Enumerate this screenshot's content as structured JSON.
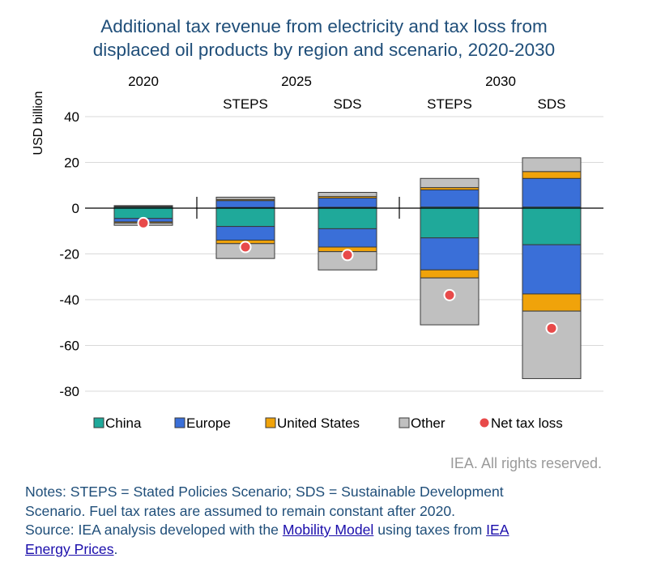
{
  "chart_data": {
    "type": "bar",
    "stacked": true,
    "title": "Additional tax revenue from electricity and tax loss from displaced oil products by region and scenario, 2020-2030",
    "title_lines": [
      "Additional tax revenue from electricity and tax loss from",
      "displaced oil products by region and scenario, 2020-2030"
    ],
    "ylabel": "USD billion",
    "ylim": [
      -80,
      40
    ],
    "yticks": [
      40,
      20,
      0,
      -20,
      -40,
      -60,
      -80
    ],
    "grid": true,
    "legend_position": "bottom",
    "year_labels": [
      "2020",
      "2025",
      "2030"
    ],
    "categories": [
      "2020",
      "STEPS",
      "SDS",
      "STEPS",
      "SDS"
    ],
    "colors": {
      "China": "#1fa99a",
      "Europe": "#3a6fd8",
      "United States": "#f0a30a",
      "Other": "#c0c0c0",
      "Net tax loss": "#e84a4a",
      "outline": "#3a3a3a"
    },
    "series": [
      {
        "name": "China",
        "positive": [
          0.5,
          0.3,
          0.4,
          0.5,
          0.5
        ],
        "negative": [
          -4.5,
          -8,
          -9,
          -13,
          -16
        ]
      },
      {
        "name": "Europe",
        "positive": [
          0.2,
          3,
          4,
          7.5,
          12.5
        ],
        "negative": [
          -1.5,
          -6,
          -8,
          -14,
          -21.5
        ]
      },
      {
        "name": "United States",
        "positive": [
          0.1,
          0.5,
          0.7,
          1,
          3
        ],
        "negative": [
          -0.5,
          -1.5,
          -2,
          -3.5,
          -7.5
        ]
      },
      {
        "name": "Other",
        "positive": [
          0.3,
          1,
          1.8,
          4,
          6
        ],
        "negative": [
          -1,
          -6.5,
          -8,
          -20.5,
          -29.5
        ]
      }
    ],
    "net_tax_loss": [
      -6.5,
      -17,
      -20.5,
      -38,
      -52.5
    ],
    "legend": [
      "China",
      "Europe",
      "United States",
      "Other",
      "Net tax loss"
    ]
  },
  "footer": {
    "credit": "IEA. All rights reserved.",
    "note1": "Notes: STEPS = Stated Policies Scenario; SDS = Sustainable Development",
    "note2": "Scenario. Fuel tax rates are assumed to remain constant after 2020.",
    "source_prefix": "Source: IEA analysis developed with the ",
    "source_link1": "Mobility Model",
    "source_mid": " using taxes from ",
    "source_link2a": "IEA",
    "source_link2b": "Energy Prices",
    "source_end": "."
  }
}
